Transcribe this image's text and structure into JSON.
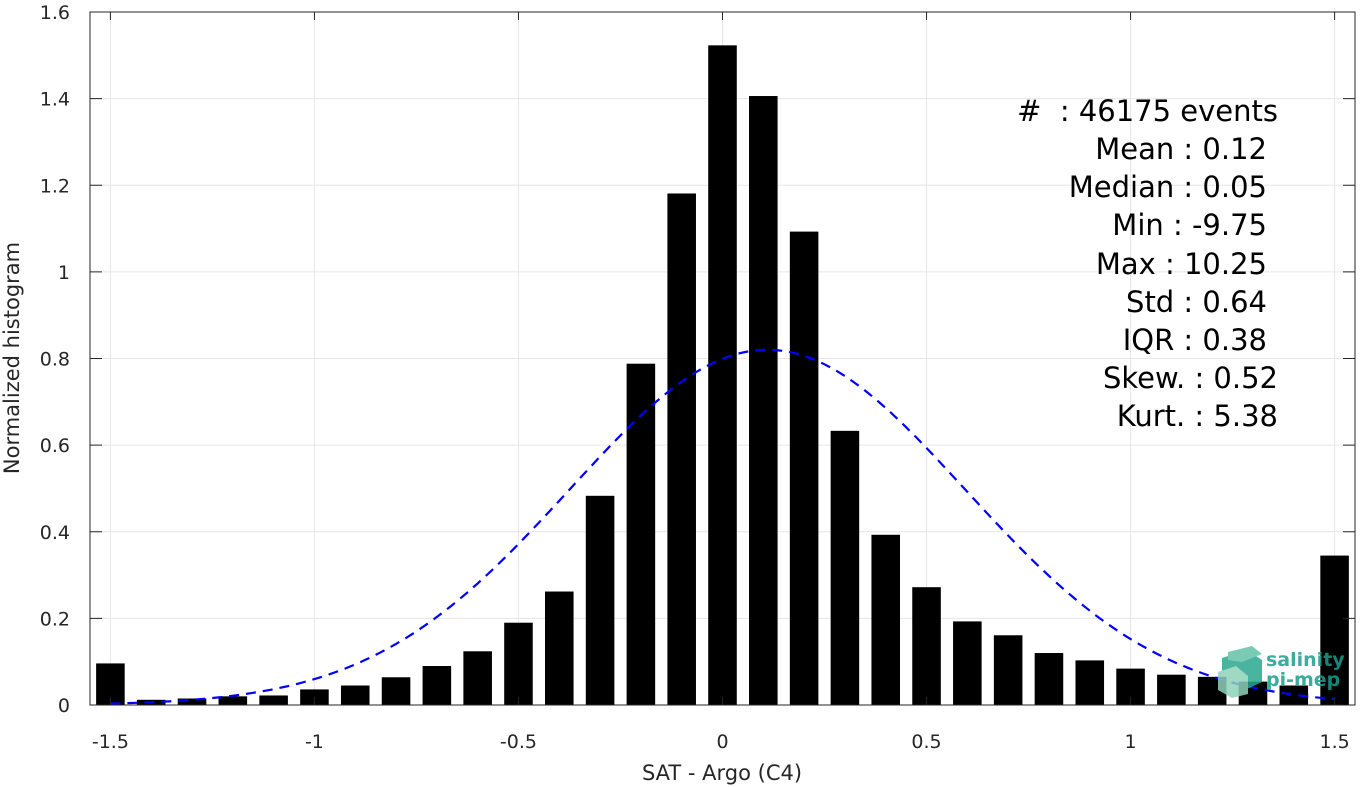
{
  "chart_data": {
    "type": "bar",
    "xlabel": "SAT - Argo (C4)",
    "ylabel": "Normalized histogram",
    "xlim": [
      -1.55,
      1.55
    ],
    "ylim": [
      0,
      1.6
    ],
    "grid": true,
    "xticks": [
      -1.5,
      -1,
      -0.5,
      0,
      0.5,
      1,
      1.5
    ],
    "xtick_labels": [
      "-1.5",
      "-1",
      "-0.5",
      "0",
      "0.5",
      "1",
      "1.5"
    ],
    "yticks": [
      0,
      0.2,
      0.4,
      0.6,
      0.8,
      1,
      1.2,
      1.4,
      1.6
    ],
    "ytick_labels": [
      "0",
      "0.2",
      "0.4",
      "0.6",
      "0.8",
      "1",
      "1.2",
      "1.4",
      "1.6"
    ],
    "bar_width": 0.07,
    "bar_color": "#000000",
    "x": [
      -1.5,
      -1.4,
      -1.3,
      -1.2,
      -1.1,
      -1.0,
      -0.9,
      -0.8,
      -0.7,
      -0.6,
      -0.5,
      -0.4,
      -0.3,
      -0.2,
      -0.1,
      0.0,
      0.1,
      0.2,
      0.3,
      0.4,
      0.5,
      0.6,
      0.7,
      0.8,
      0.9,
      1.0,
      1.1,
      1.2,
      1.3,
      1.4,
      1.5
    ],
    "values": [
      0.096,
      0.012,
      0.015,
      0.02,
      0.022,
      0.036,
      0.045,
      0.064,
      0.09,
      0.124,
      0.19,
      0.262,
      0.483,
      0.788,
      1.181,
      1.523,
      1.406,
      1.093,
      0.633,
      0.393,
      0.272,
      0.193,
      0.161,
      0.12,
      0.103,
      0.084,
      0.07,
      0.065,
      0.054,
      0.045,
      0.345
    ],
    "fit_curve": {
      "style": "dashed",
      "color": "#0000ff",
      "mean": 0.11,
      "peak": 0.82,
      "sigma": 0.485,
      "x_range": [
        -1.5,
        1.5
      ]
    },
    "annotations": [
      "#  : 46175 events",
      "Mean : 0.12",
      "Median : 0.05",
      "Min : -9.75",
      "Max : 10.25",
      "Std : 0.64",
      "IQR : 0.38",
      "Skew. : 0.52",
      "Kurt. : 5.38"
    ]
  },
  "logo": {
    "line1": "salinity",
    "line2": "pi-mep",
    "color": "#1a9e8c"
  }
}
